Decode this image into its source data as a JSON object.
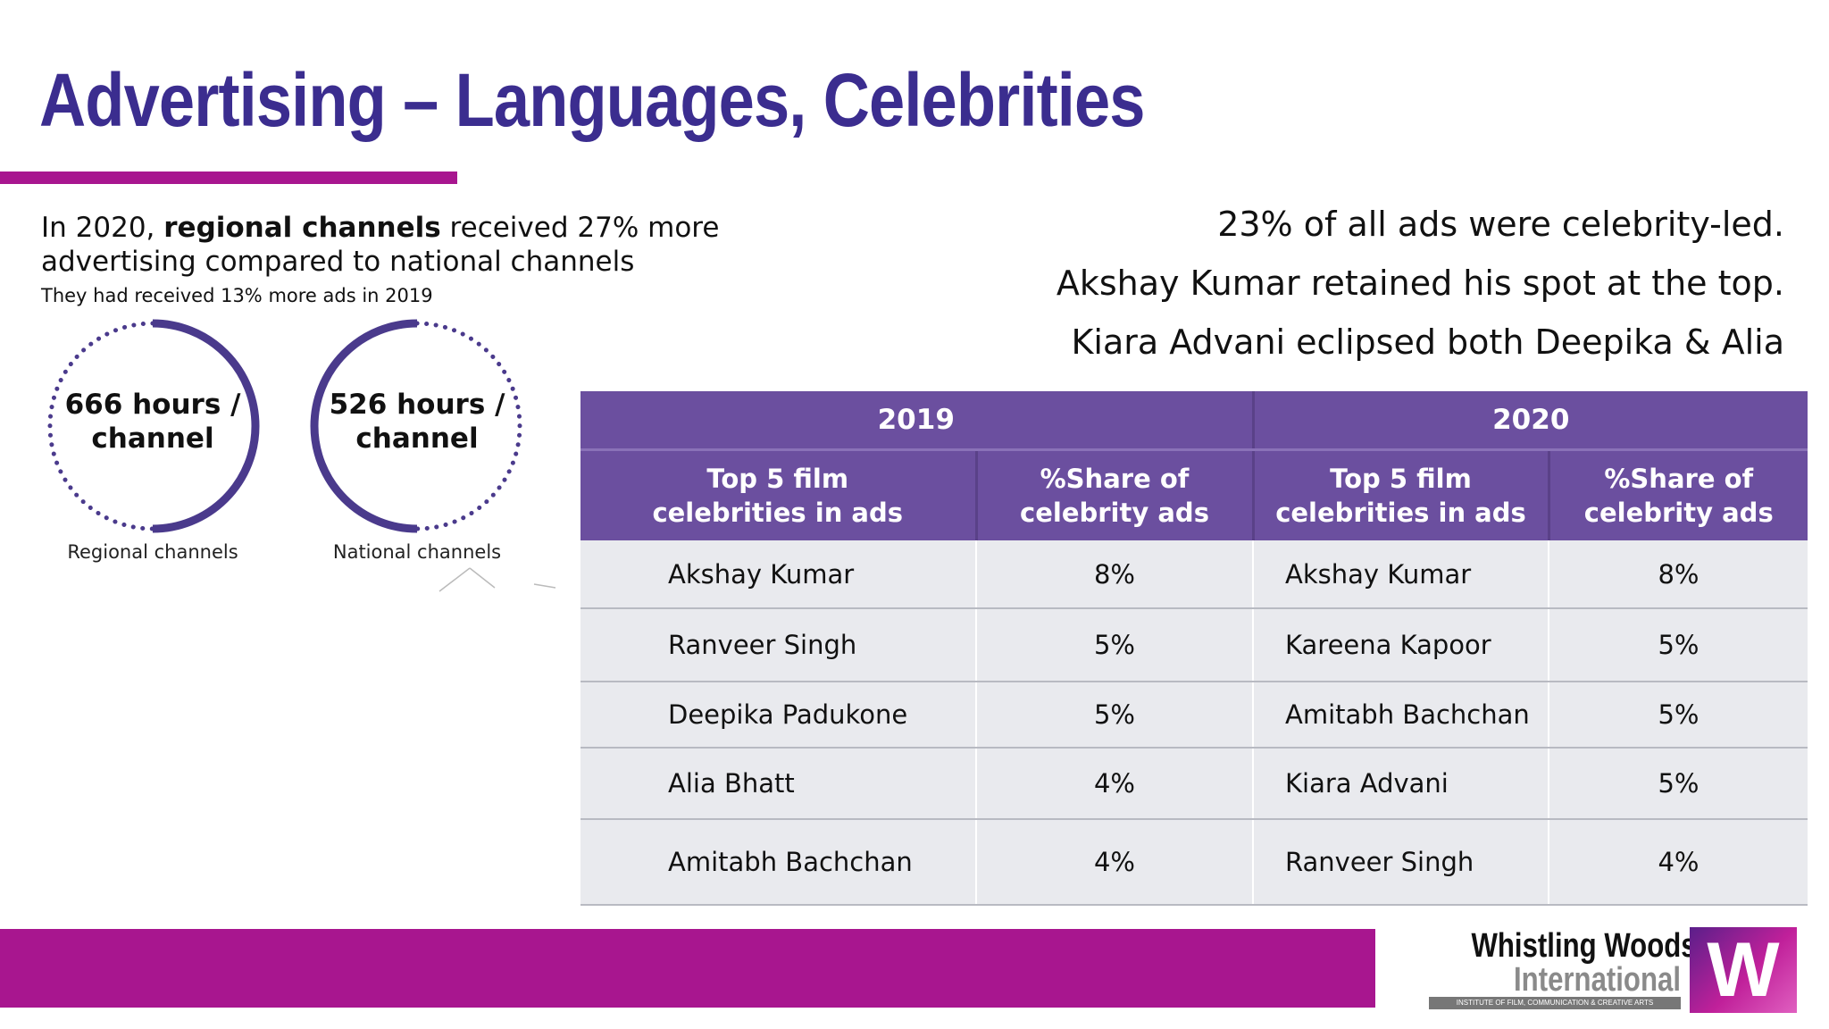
{
  "slide": {
    "title": "Advertising – Languages, Celebrities"
  },
  "regional": {
    "headline_prefix": "In 2020, ",
    "headline_bold": "regional channels",
    "headline_suffix": " received 27% more",
    "headline_line2": "advertising compared to national channels",
    "subline": "They had received 13% more ads in 2019"
  },
  "rings": [
    {
      "line1": "666 hours /",
      "line2": "channel",
      "caption": "Regional channels"
    },
    {
      "line1": "526 hours /",
      "line2": "channel",
      "caption": "National channels"
    }
  ],
  "facts": [
    "23% of all ads were celebrity-led.",
    "Akshay Kumar retained his spot at the top.",
    "Kiara Advani eclipsed both Deepika & Alia"
  ],
  "table": {
    "years": [
      "2019",
      "2020"
    ],
    "headers": {
      "celebs_line1": "Top 5 film",
      "celebs_line2": "celebrities in ads",
      "share_line1": "%Share of",
      "share_line2": "celebrity ads"
    },
    "rows": [
      {
        "celeb_2019": "Akshay Kumar",
        "share_2019": "8%",
        "celeb_2020": "Akshay Kumar",
        "share_2020": "8%"
      },
      {
        "celeb_2019": "Ranveer Singh",
        "share_2019": "5%",
        "celeb_2020": "Kareena Kapoor",
        "share_2020": "5%"
      },
      {
        "celeb_2019": "Deepika Padukone",
        "share_2019": "5%",
        "celeb_2020": "Amitabh Bachchan",
        "share_2020": "5%"
      },
      {
        "celeb_2019": "Alia Bhatt",
        "share_2019": "4%",
        "celeb_2020": "Kiara Advani",
        "share_2020": "5%"
      },
      {
        "celeb_2019": "Amitabh Bachchan",
        "share_2019": "4%",
        "celeb_2020": "Ranveer Singh",
        "share_2020": "4%"
      }
    ]
  },
  "logo": {
    "name_line1": "Whistling Woods",
    "name_line2": "International",
    "tagline": "INSTITUTE OF FILM, COMMUNICATION & CREATIVE ARTS",
    "mark": "W"
  },
  "colors": {
    "title": "#3b2d8f",
    "accent": "#a8168f",
    "ring": "#4a3a8c",
    "table_header": "#6b4f9f",
    "table_row": "#e9eaee"
  }
}
